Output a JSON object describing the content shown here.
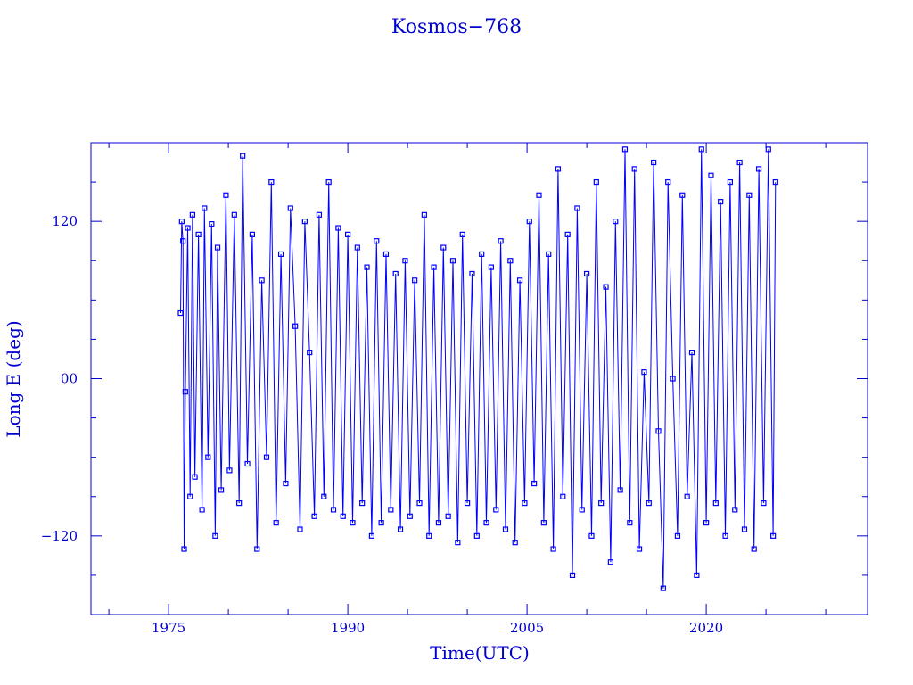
{
  "chart_data": {
    "type": "scatter",
    "title": "Kosmos−768",
    "xlabel": "Time(UTC)",
    "ylabel": "Long E (deg)",
    "xlim": [
      1968.5,
      2033.5
    ],
    "ylim": [
      -180,
      180
    ],
    "x_ticks": [
      {
        "value": 1975,
        "label": "1975"
      },
      {
        "value": 1990,
        "label": "1990"
      },
      {
        "value": 2005,
        "label": "2005"
      },
      {
        "value": 2020,
        "label": "2020"
      }
    ],
    "y_ticks": [
      {
        "value": 120,
        "label": "120"
      },
      {
        "value": 0,
        "label": "00"
      },
      {
        "value": -120,
        "label": "−120"
      }
    ],
    "grid": false,
    "markers": "open-square",
    "connected": true,
    "color": "#0000ff",
    "axis_color": "#0000cc",
    "series": [
      {
        "points": [
          [
            1976.0,
            50
          ],
          [
            1976.1,
            120
          ],
          [
            1976.2,
            105
          ],
          [
            1976.3,
            -130
          ],
          [
            1976.4,
            -10
          ],
          [
            1976.6,
            115
          ],
          [
            1976.8,
            -90
          ],
          [
            1977.0,
            125
          ],
          [
            1977.2,
            -75
          ],
          [
            1977.5,
            110
          ],
          [
            1977.8,
            -100
          ],
          [
            1978.0,
            130
          ],
          [
            1978.3,
            -60
          ],
          [
            1978.6,
            118
          ],
          [
            1978.9,
            -120
          ],
          [
            1979.1,
            100
          ],
          [
            1979.4,
            -85
          ],
          [
            1979.8,
            140
          ],
          [
            1980.1,
            -70
          ],
          [
            1980.5,
            125
          ],
          [
            1980.9,
            -95
          ],
          [
            1981.2,
            170
          ],
          [
            1981.6,
            -65
          ],
          [
            1982.0,
            110
          ],
          [
            1982.4,
            -130
          ],
          [
            1982.8,
            75
          ],
          [
            1983.2,
            -60
          ],
          [
            1983.6,
            150
          ],
          [
            1984.0,
            -110
          ],
          [
            1984.4,
            95
          ],
          [
            1984.8,
            -80
          ],
          [
            1985.2,
            130
          ],
          [
            1985.6,
            40
          ],
          [
            1986.0,
            -115
          ],
          [
            1986.4,
            120
          ],
          [
            1986.8,
            20
          ],
          [
            1987.2,
            -105
          ],
          [
            1987.6,
            125
          ],
          [
            1988.0,
            -90
          ],
          [
            1988.4,
            150
          ],
          [
            1988.8,
            -100
          ],
          [
            1989.2,
            115
          ],
          [
            1989.6,
            -105
          ],
          [
            1990.0,
            110
          ],
          [
            1990.4,
            -110
          ],
          [
            1990.8,
            100
          ],
          [
            1991.2,
            -95
          ],
          [
            1991.6,
            85
          ],
          [
            1992.0,
            -120
          ],
          [
            1992.4,
            105
          ],
          [
            1992.8,
            -110
          ],
          [
            1993.2,
            95
          ],
          [
            1993.6,
            -100
          ],
          [
            1994.0,
            80
          ],
          [
            1994.4,
            -115
          ],
          [
            1994.8,
            90
          ],
          [
            1995.2,
            -105
          ],
          [
            1995.6,
            75
          ],
          [
            1996.0,
            -95
          ],
          [
            1996.4,
            125
          ],
          [
            1996.8,
            -120
          ],
          [
            1997.2,
            85
          ],
          [
            1997.6,
            -110
          ],
          [
            1998.0,
            100
          ],
          [
            1998.4,
            -105
          ],
          [
            1998.8,
            90
          ],
          [
            1999.2,
            -125
          ],
          [
            1999.6,
            110
          ],
          [
            2000.0,
            -95
          ],
          [
            2000.4,
            80
          ],
          [
            2000.8,
            -120
          ],
          [
            2001.2,
            95
          ],
          [
            2001.6,
            -110
          ],
          [
            2002.0,
            85
          ],
          [
            2002.4,
            -100
          ],
          [
            2002.8,
            105
          ],
          [
            2003.2,
            -115
          ],
          [
            2003.6,
            90
          ],
          [
            2004.0,
            -125
          ],
          [
            2004.4,
            75
          ],
          [
            2004.8,
            -95
          ],
          [
            2005.2,
            120
          ],
          [
            2005.6,
            -80
          ],
          [
            2006.0,
            140
          ],
          [
            2006.4,
            -110
          ],
          [
            2006.8,
            95
          ],
          [
            2007.2,
            -130
          ],
          [
            2007.6,
            160
          ],
          [
            2008.0,
            -90
          ],
          [
            2008.4,
            110
          ],
          [
            2008.8,
            -150
          ],
          [
            2009.2,
            130
          ],
          [
            2009.6,
            -100
          ],
          [
            2010.0,
            80
          ],
          [
            2010.4,
            -120
          ],
          [
            2010.8,
            150
          ],
          [
            2011.2,
            -95
          ],
          [
            2011.6,
            70
          ],
          [
            2012.0,
            -140
          ],
          [
            2012.4,
            120
          ],
          [
            2012.8,
            -85
          ],
          [
            2013.2,
            175
          ],
          [
            2013.6,
            -110
          ],
          [
            2014.0,
            160
          ],
          [
            2014.4,
            -130
          ],
          [
            2014.8,
            5
          ],
          [
            2015.2,
            -95
          ],
          [
            2015.6,
            165
          ],
          [
            2016.0,
            -40
          ],
          [
            2016.4,
            -160
          ],
          [
            2016.8,
            150
          ],
          [
            2017.2,
            0
          ],
          [
            2017.6,
            -120
          ],
          [
            2018.0,
            140
          ],
          [
            2018.4,
            -90
          ],
          [
            2018.8,
            20
          ],
          [
            2019.2,
            -150
          ],
          [
            2019.6,
            175
          ],
          [
            2020.0,
            -110
          ],
          [
            2020.4,
            155
          ],
          [
            2020.8,
            -95
          ],
          [
            2021.2,
            135
          ],
          [
            2021.6,
            -120
          ],
          [
            2022.0,
            150
          ],
          [
            2022.4,
            -100
          ],
          [
            2022.8,
            165
          ],
          [
            2023.2,
            -115
          ],
          [
            2023.6,
            140
          ],
          [
            2024.0,
            -130
          ],
          [
            2024.4,
            160
          ],
          [
            2024.8,
            -95
          ],
          [
            2025.2,
            175
          ],
          [
            2025.6,
            -120
          ],
          [
            2025.8,
            150
          ]
        ]
      }
    ]
  }
}
